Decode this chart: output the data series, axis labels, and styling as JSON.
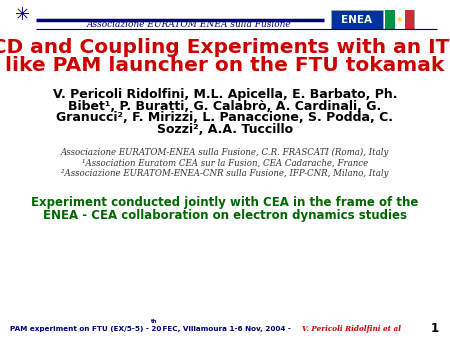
{
  "title_line1": "LHCD and Coupling Experiments with an ITER-",
  "title_line2": "like PAM launcher on the FTU tokamak",
  "title_color": "#cc0000",
  "authors_line1": "V. Pericoli Ridolfini, M.L. Apicella, E. Barbato, Ph.",
  "authors_line2": "Bibet¹, P. Buratti, G. Calabrò, A. Cardinali, G.",
  "authors_line3": "Granucci², F. Mirizzi, L. Panaccione, S. Podda, C.",
  "authors_line4": "Sozzi², A.A. Tuccillo",
  "affil1": "Associazione EURATOM-ENEA sulla Fusione, C.R. FRASCATI (Roma), Italy",
  "affil2": "¹Association Euratom CEA sur la Fusion, CEA Cadarache, France",
  "affil3": "²Associazione EURATOM-ENEA-CNR sulla Fusione, IFP-CNR, Milano, Italy",
  "exp_line1": "Experiment conducted jointly with CEA in the frame of the",
  "exp_line2": "ENEA - CEA collaboration on electron dynamics studies",
  "exp_color": "#006600",
  "header_text": "Associazione EURATOM ENEA sulla Fusione",
  "footer_main": "PAM experiment on FTU (EX/5-5) - 20",
  "footer_super": "th",
  "footer_rest": " FEC, Villamoura 1-6 Nov, 2004 - ",
  "footer_italic": "V. Pericoli Ridolfini et al",
  "footer_color": "#000080",
  "footer_italic_color": "#cc0000",
  "page_num": "1",
  "bg_color": "#ffffff",
  "navy": "#000080",
  "title_fs": 14.5,
  "author_fs": 9.0,
  "affil_fs": 6.2,
  "exp_fs": 8.5,
  "footer_fs": 5.2
}
